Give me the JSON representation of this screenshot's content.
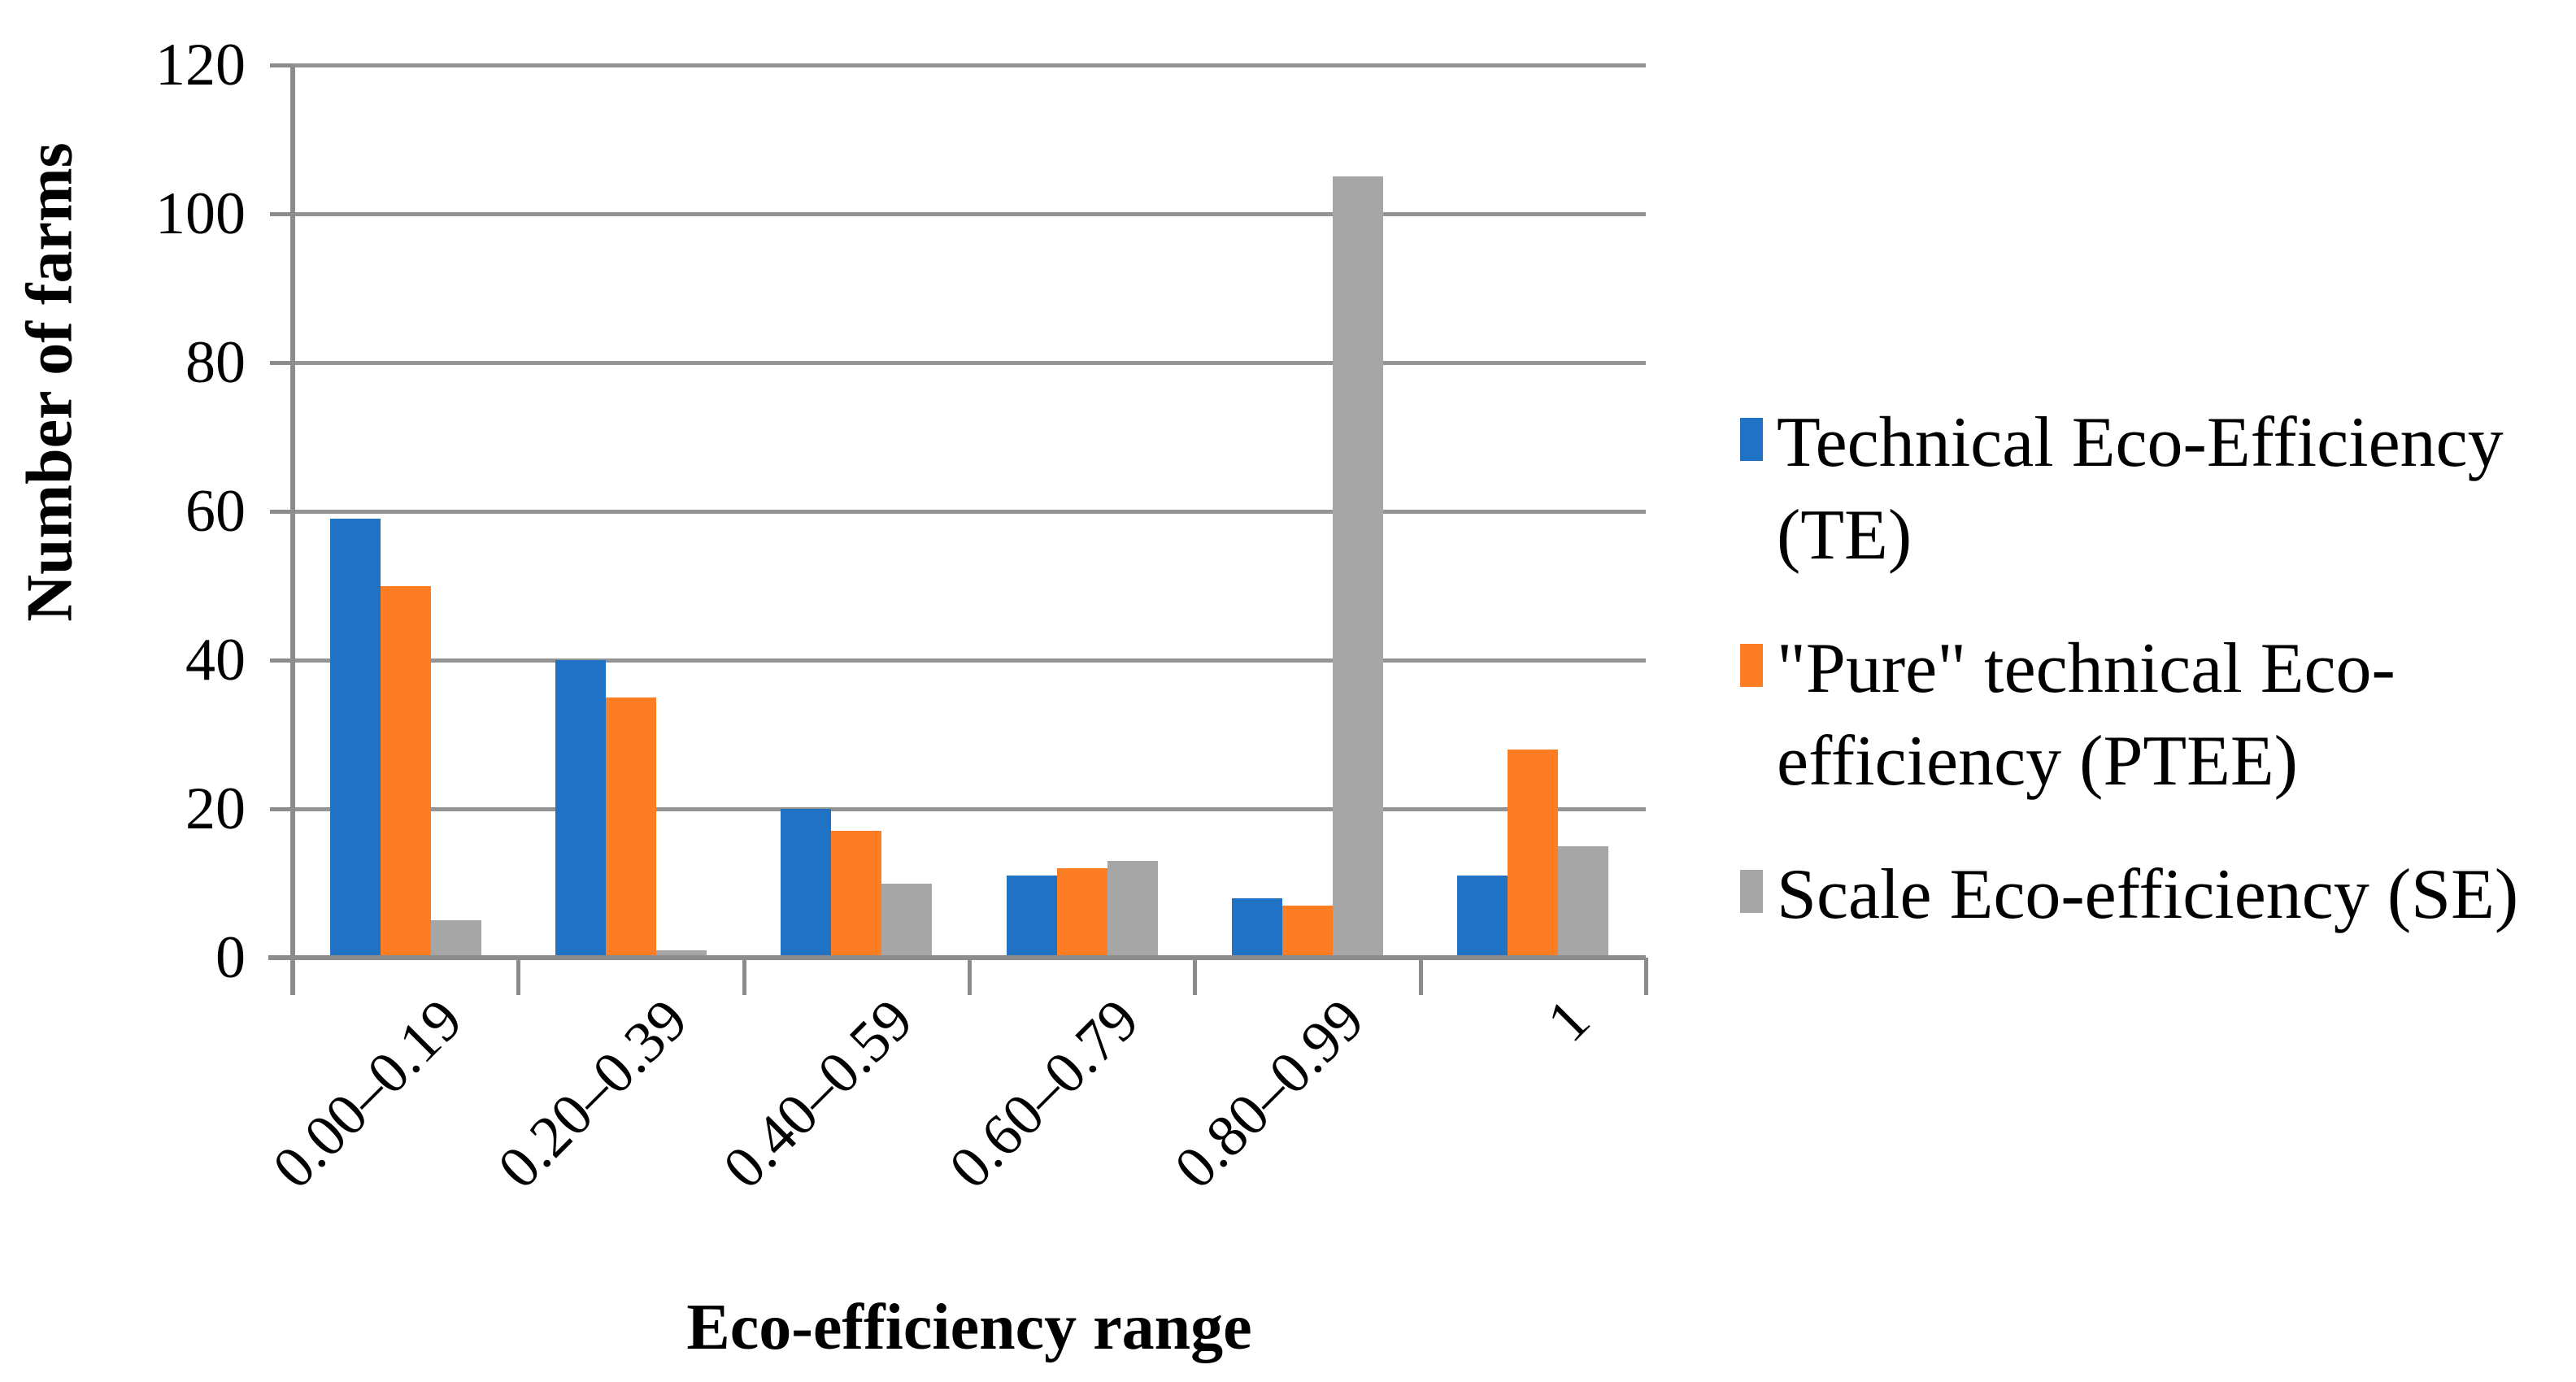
{
  "figure": {
    "y_axis_title": "Number of farms",
    "x_axis_title": "Eco-efficiency range"
  },
  "chart_data": {
    "type": "bar",
    "title": "",
    "xlabel": "Eco-efficiency range",
    "ylabel": "Number of farms",
    "categories": [
      "0.00–0.19",
      "0.20–0.39",
      "0.40–0.59",
      "0.60–0.79",
      "0.80–0.99",
      "1"
    ],
    "series": [
      {
        "name": "Technical Eco-Efficiency (TE)",
        "legend_lines": [
          "Technical Eco-Efficiency",
          "(TE)"
        ],
        "color": "#1F72C4",
        "values": [
          59,
          40,
          20,
          11,
          8,
          11
        ]
      },
      {
        "name": "\"Pure\" technical Eco-efficiency (PTEE)",
        "legend_lines": [
          "\"Pure\" technical Eco-",
          "efficiency (PTEE)"
        ],
        "color": "#FC7D23",
        "values": [
          50,
          35,
          17,
          12,
          7,
          28
        ]
      },
      {
        "name": "Scale Eco-efficiency (SE)",
        "legend_lines": [
          "Scale Eco-efficiency (SE)"
        ],
        "color": "#A6A6A6",
        "values": [
          5,
          1,
          10,
          13,
          105,
          15
        ]
      }
    ],
    "y_ticks": [
      0,
      20,
      40,
      60,
      80,
      100,
      120
    ],
    "ylim": [
      0,
      120
    ],
    "grid": "horizontal",
    "legend_position": "right",
    "axis_color": "#8C8C8C",
    "gridline_color": "#949494"
  }
}
